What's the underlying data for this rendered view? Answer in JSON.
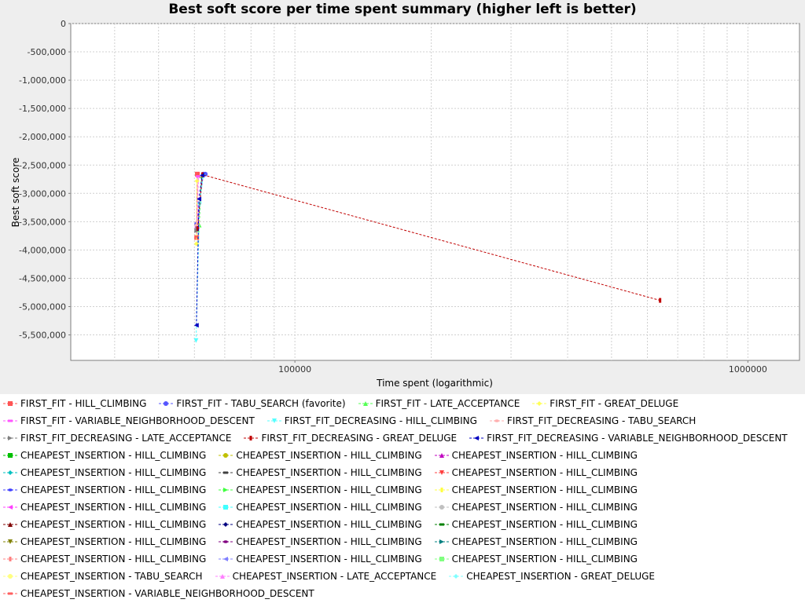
{
  "chart_data": {
    "type": "scatter",
    "title": "Best soft score per time spent summary (higher left is better)",
    "xlabel": "Time spent (logarithmic)",
    "ylabel": "Best soft score",
    "x_scale": "log",
    "xlim": [
      32000,
      1300000
    ],
    "ylim": [
      -5950000,
      0
    ],
    "x_ticks": [
      {
        "value": 100000,
        "label": "100000"
      },
      {
        "value": 1000000,
        "label": "1000000"
      }
    ],
    "y_ticks": [
      {
        "value": 0,
        "label": "0"
      },
      {
        "value": -500000,
        "label": "-500,000"
      },
      {
        "value": -1000000,
        "label": "-1,000,000"
      },
      {
        "value": -1500000,
        "label": "-1,500,000"
      },
      {
        "value": -2000000,
        "label": "-2,000,000"
      },
      {
        "value": -2500000,
        "label": "-2,500,000"
      },
      {
        "value": -3000000,
        "label": "-3,000,000"
      },
      {
        "value": -3500000,
        "label": "-3,500,000"
      },
      {
        "value": -4000000,
        "label": "-4,000,000"
      },
      {
        "value": -4500000,
        "label": "-4,500,000"
      },
      {
        "value": -5000000,
        "label": "-5,000,000"
      },
      {
        "value": -5500000,
        "label": "-5,500,000"
      }
    ],
    "grid": true,
    "legend_position": "bottom",
    "series": [
      {
        "name": "FIRST_FIT - HILL_CLIMBING",
        "color": "#ff5555",
        "marker": "square",
        "points": [
          [
            60700,
            -3780000
          ],
          [
            60900,
            -2660000
          ]
        ]
      },
      {
        "name": "FIRST_FIT - TABU_SEARCH (favorite)",
        "color": "#5555ff",
        "marker": "circle",
        "points": [
          [
            60700,
            -3540000
          ],
          [
            62800,
            -2660000
          ],
          [
            63400,
            -2660000
          ]
        ]
      },
      {
        "name": "FIRST_FIT - LATE_ACCEPTANCE",
        "color": "#55ff55",
        "marker": "triangle-up",
        "points": [
          [
            60900,
            -3640000
          ],
          [
            61500,
            -3560000
          ],
          [
            62200,
            -2690000
          ]
        ]
      },
      {
        "name": "FIRST_FIT - GREAT_DELUGE",
        "color": "#ffff55",
        "marker": "diamond",
        "points": [
          [
            60600,
            -3890000
          ],
          [
            60800,
            -2780000
          ]
        ]
      },
      {
        "name": "FIRST_FIT - VARIABLE_NEIGHBORHOOD_DESCENT",
        "color": "#ff55ff",
        "marker": "hbar",
        "points": [
          [
            60800,
            -3600000
          ],
          [
            61200,
            -2700000
          ]
        ]
      },
      {
        "name": "FIRST_FIT_DECREASING - HILL_CLIMBING",
        "color": "#55ffff",
        "marker": "triangle-down",
        "points": [
          [
            60500,
            -5600000
          ],
          [
            61600,
            -3200000
          ],
          [
            62700,
            -2700000
          ]
        ]
      },
      {
        "name": "FIRST_FIT_DECREASING - TABU_SEARCH",
        "color": "#ffafaf",
        "marker": "ellipse",
        "points": [
          [
            60800,
            -3560000
          ],
          [
            61000,
            -3500000
          ]
        ]
      },
      {
        "name": "FIRST_FIT_DECREASING - LATE_ACCEPTANCE",
        "color": "#808080",
        "marker": "triangle-right",
        "points": [
          [
            60700,
            -3660000
          ],
          [
            61000,
            -3620000
          ]
        ]
      },
      {
        "name": "FIRST_FIT_DECREASING - GREAT_DELUGE",
        "color": "#c00000",
        "marker": "vbar",
        "points": [
          [
            61000,
            -3620000
          ],
          [
            62500,
            -2670000
          ],
          [
            640000,
            -4890000
          ]
        ]
      },
      {
        "name": "FIRST_FIT_DECREASING - VARIABLE_NEIGHBORHOOD_DESCENT",
        "color": "#0000c0",
        "marker": "triangle-left",
        "points": [
          [
            60600,
            -5330000
          ],
          [
            61400,
            -3100000
          ],
          [
            62400,
            -2680000
          ]
        ]
      },
      {
        "name": "CHEAPEST_INSERTION - HILL_CLIMBING",
        "color": "#00c000",
        "marker": "square",
        "points": []
      },
      {
        "name": "CHEAPEST_INSERTION - HILL_CLIMBING",
        "color": "#c0c000",
        "marker": "circle",
        "points": []
      },
      {
        "name": "CHEAPEST_INSERTION - HILL_CLIMBING",
        "color": "#c000c0",
        "marker": "triangle-up",
        "points": []
      },
      {
        "name": "CHEAPEST_INSERTION - HILL_CLIMBING",
        "color": "#00c0c0",
        "marker": "diamond",
        "points": []
      },
      {
        "name": "CHEAPEST_INSERTION - HILL_CLIMBING",
        "color": "#404040",
        "marker": "hbar",
        "points": []
      },
      {
        "name": "CHEAPEST_INSERTION - HILL_CLIMBING",
        "color": "#ff4040",
        "marker": "triangle-down",
        "points": []
      },
      {
        "name": "CHEAPEST_INSERTION - HILL_CLIMBING",
        "color": "#4040ff",
        "marker": "ellipse",
        "points": []
      },
      {
        "name": "CHEAPEST_INSERTION - HILL_CLIMBING",
        "color": "#40ff40",
        "marker": "triangle-right",
        "points": []
      },
      {
        "name": "CHEAPEST_INSERTION - HILL_CLIMBING",
        "color": "#ffff40",
        "marker": "vbar",
        "points": []
      },
      {
        "name": "CHEAPEST_INSERTION - HILL_CLIMBING",
        "color": "#ff40ff",
        "marker": "triangle-left",
        "points": []
      },
      {
        "name": "CHEAPEST_INSERTION - HILL_CLIMBING",
        "color": "#40ffff",
        "marker": "square",
        "points": []
      },
      {
        "name": "CHEAPEST_INSERTION - HILL_CLIMBING",
        "color": "#c0c0c0",
        "marker": "circle",
        "points": []
      },
      {
        "name": "CHEAPEST_INSERTION - HILL_CLIMBING",
        "color": "#800000",
        "marker": "triangle-up",
        "points": []
      },
      {
        "name": "CHEAPEST_INSERTION - HILL_CLIMBING",
        "color": "#000080",
        "marker": "diamond",
        "points": []
      },
      {
        "name": "CHEAPEST_INSERTION - HILL_CLIMBING",
        "color": "#008000",
        "marker": "hbar",
        "points": []
      },
      {
        "name": "CHEAPEST_INSERTION - HILL_CLIMBING",
        "color": "#808000",
        "marker": "triangle-down",
        "points": []
      },
      {
        "name": "CHEAPEST_INSERTION - HILL_CLIMBING",
        "color": "#800080",
        "marker": "ellipse",
        "points": []
      },
      {
        "name": "CHEAPEST_INSERTION - HILL_CLIMBING",
        "color": "#008080",
        "marker": "triangle-right",
        "points": []
      },
      {
        "name": "CHEAPEST_INSERTION - HILL_CLIMBING",
        "color": "#ff8080",
        "marker": "vbar",
        "points": []
      },
      {
        "name": "CHEAPEST_INSERTION - HILL_CLIMBING",
        "color": "#8080ff",
        "marker": "triangle-left",
        "points": []
      },
      {
        "name": "CHEAPEST_INSERTION - HILL_CLIMBING",
        "color": "#80ff80",
        "marker": "square",
        "points": []
      },
      {
        "name": "CHEAPEST_INSERTION - TABU_SEARCH",
        "color": "#ffff80",
        "marker": "circle",
        "points": []
      },
      {
        "name": "CHEAPEST_INSERTION - LATE_ACCEPTANCE",
        "color": "#ff80ff",
        "marker": "triangle-up",
        "points": []
      },
      {
        "name": "CHEAPEST_INSERTION - GREAT_DELUGE",
        "color": "#80ffff",
        "marker": "diamond",
        "points": []
      },
      {
        "name": "CHEAPEST_INSERTION - VARIABLE_NEIGHBORHOOD_DESCENT",
        "color": "#ff6060",
        "marker": "hbar",
        "points": []
      }
    ]
  }
}
